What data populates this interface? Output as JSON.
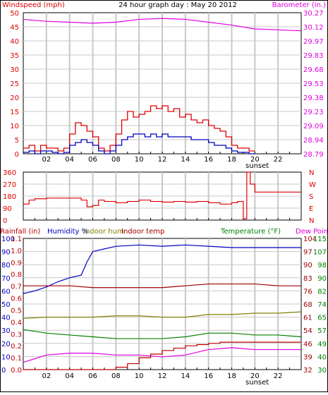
{
  "title": "24 hour graph day : May 20 2012",
  "colors": {
    "wind": "#e00000",
    "gust": "#e00000",
    "avg": "#0000c0",
    "baro": "#e000e0",
    "dir": "#e00000",
    "humidity": "#0000c0",
    "indoor_hum": "#808000",
    "indoor_temp": "#a00000",
    "temperature": "#008000",
    "dewpoint": "#e000e0",
    "rain": "#c00000",
    "grid": "#c8c8c8",
    "axis": "#000000"
  },
  "chart_data": [
    {
      "type": "line",
      "panel": "wind-baro",
      "left_axis_label": "Windspeed (mph)",
      "right_axis_label": "Barometer (in.)",
      "x_ticks": [
        "02",
        "04",
        "06",
        "08",
        "10",
        "12",
        "14",
        "16",
        "18",
        "20",
        "22"
      ],
      "x_extra_label": "sunset",
      "y_left_ticks": [
        "0",
        "5",
        "10",
        "15",
        "20",
        "25",
        "30",
        "35",
        "40",
        "45",
        "50"
      ],
      "ylim_left": [
        0,
        50
      ],
      "y_right_ticks": [
        "28.79",
        "28.94",
        "29.09",
        "29.23",
        "29.38",
        "29.53",
        "29.68",
        "29.83",
        "29.97",
        "30.12",
        "30.27"
      ],
      "ylim_right": [
        28.79,
        30.27
      ],
      "series": [
        {
          "key": "gust",
          "axis": "left",
          "x": [
            0,
            0.5,
            1,
            1.5,
            2,
            2.5,
            3,
            3.5,
            4,
            4.5,
            5,
            5.5,
            6,
            6.5,
            7,
            7.5,
            8,
            8.5,
            9,
            9.5,
            10,
            10.5,
            11,
            11.5,
            12,
            12.5,
            13,
            13.5,
            14,
            14.5,
            15,
            15.5,
            16,
            16.5,
            17,
            17.5,
            18,
            18.5,
            19,
            19.5,
            20
          ],
          "values": [
            2,
            3,
            1,
            3,
            2,
            2,
            1,
            2,
            7,
            11,
            10,
            8,
            6,
            2,
            1,
            3,
            7,
            12,
            15,
            13,
            14,
            15,
            17,
            16,
            17,
            15,
            16,
            13,
            14,
            12,
            11,
            12,
            10,
            9,
            8,
            6,
            3,
            2,
            2,
            1,
            1
          ]
        },
        {
          "key": "avg",
          "axis": "left",
          "x": [
            0,
            0.5,
            1,
            1.5,
            2,
            2.5,
            3,
            3.5,
            4,
            4.5,
            5,
            5.5,
            6,
            6.5,
            7,
            7.5,
            8,
            8.5,
            9,
            9.5,
            10,
            10.5,
            11,
            11.5,
            12,
            12.5,
            13,
            13.5,
            14,
            14.5,
            15,
            15.5,
            16,
            16.5,
            17,
            17.5,
            18,
            18.5,
            19,
            19.5,
            20
          ],
          "values": [
            0.5,
            1,
            0,
            1,
            1,
            0.5,
            0,
            0.5,
            3,
            4,
            5,
            4,
            3,
            1,
            0,
            1,
            3,
            5,
            6,
            7,
            7,
            6,
            7,
            6,
            7,
            6,
            6,
            6,
            6,
            5,
            5,
            5,
            4,
            3,
            3,
            2,
            1,
            0.5,
            0.5,
            0,
            0
          ]
        },
        {
          "key": "baro",
          "axis": "right",
          "x": [
            0,
            2,
            4,
            6,
            8,
            10,
            12,
            14,
            16,
            18,
            20,
            22,
            24
          ],
          "values": [
            30.2,
            30.18,
            30.17,
            30.16,
            30.17,
            30.2,
            30.21,
            30.2,
            30.17,
            30.14,
            30.1,
            30.09,
            30.08
          ]
        }
      ]
    },
    {
      "type": "line",
      "panel": "wind-direction",
      "x_ticks": [
        "02",
        "04",
        "06",
        "08",
        "10",
        "12",
        "14",
        "16",
        "18",
        "20",
        "22"
      ],
      "y_left_ticks": [
        "0",
        "90",
        "180",
        "270",
        "360"
      ],
      "ylim_left": [
        0,
        360
      ],
      "y_right_ticks": [
        "N",
        "E",
        "S",
        "W",
        "N"
      ],
      "series": [
        {
          "key": "dir",
          "x": [
            0,
            0.5,
            1,
            2,
            3,
            4,
            5,
            5.5,
            6,
            6.5,
            7,
            8,
            9,
            10,
            11,
            12,
            13,
            14,
            15,
            16,
            17,
            18,
            18.5,
            19,
            19.3,
            19.6,
            20,
            21,
            22,
            23,
            24
          ],
          "values": [
            120,
            150,
            160,
            165,
            165,
            165,
            150,
            100,
            110,
            150,
            140,
            130,
            140,
            150,
            140,
            135,
            140,
            135,
            140,
            130,
            120,
            130,
            140,
            10,
            360,
            270,
            210,
            210,
            210,
            210,
            210
          ]
        }
      ]
    },
    {
      "type": "line",
      "panel": "temp-hum-rain",
      "left_axis_labels": [
        "Rainfall (in)",
        "Humidity %",
        "Indoor hum",
        "Indoor temp"
      ],
      "right_axis_labels": [
        "Temperature (°F)",
        "Dew Point"
      ],
      "x_ticks": [
        "02",
        "04",
        "06",
        "08",
        "10",
        "12",
        "14",
        "16",
        "18",
        "20",
        "22"
      ],
      "x_extra_label": "sunset",
      "y_hum_ticks": [
        "0",
        "10",
        "20",
        "30",
        "40",
        "50",
        "60",
        "70",
        "80",
        "90",
        "100"
      ],
      "ylim_hum": [
        0,
        100
      ],
      "y_rain_ticks": [
        "0.0",
        "0.1",
        "0.2",
        "0.3",
        "0.4",
        "0.5",
        "0.6",
        "0.7",
        "0.8",
        "0.9",
        "1.0",
        "1.1"
      ],
      "ylim_rain": [
        0,
        1.1
      ],
      "y_temp_ticks_a": [
        "32",
        "39",
        "46",
        "54",
        "61",
        "68",
        "76",
        "83",
        "90",
        "97",
        "104"
      ],
      "y_temp_ticks_b": [
        "30",
        "40",
        "49",
        "57",
        "65",
        "74",
        "82",
        "90",
        "98",
        "107",
        "115"
      ],
      "ylim_temp": [
        32,
        104
      ],
      "series": [
        {
          "key": "humidity",
          "axis": "hum",
          "x": [
            0,
            1,
            2,
            3,
            4,
            5,
            5.5,
            6,
            7,
            8,
            10,
            12,
            14,
            16,
            18,
            20,
            22,
            24
          ],
          "values": [
            58,
            60,
            63,
            67,
            70,
            72,
            82,
            90,
            92,
            94,
            95,
            94,
            95,
            94,
            93,
            93,
            93,
            93
          ]
        },
        {
          "key": "indoor_temp",
          "axis": "temp",
          "x": [
            0,
            2,
            4,
            6,
            8,
            10,
            12,
            14,
            16,
            18,
            20,
            22,
            24
          ],
          "values": [
            78,
            78,
            78,
            77,
            77,
            77,
            77,
            78,
            79,
            79,
            79,
            78,
            78
          ]
        },
        {
          "key": "indoor_hum",
          "axis": "hum",
          "x": [
            0,
            2,
            4,
            6,
            8,
            10,
            12,
            14,
            16,
            18,
            20,
            22,
            24
          ],
          "values": [
            39,
            40,
            40,
            40,
            41,
            41,
            40,
            40,
            42,
            42,
            43,
            43,
            44
          ]
        },
        {
          "key": "temperature",
          "axis": "temp",
          "x": [
            0,
            2,
            4,
            6,
            8,
            10,
            12,
            14,
            16,
            18,
            20,
            22,
            24
          ],
          "values": [
            54,
            52,
            51,
            50,
            49,
            49,
            49,
            50,
            52,
            52,
            51,
            51,
            50
          ]
        },
        {
          "key": "dewpoint",
          "axis": "temp",
          "x": [
            0,
            1,
            2,
            4,
            6,
            8,
            10,
            12,
            14,
            16,
            18,
            20,
            22,
            24
          ],
          "values": [
            36,
            38,
            40,
            41,
            41,
            40,
            40,
            39,
            40,
            43,
            44,
            43,
            43,
            43
          ]
        },
        {
          "key": "rain",
          "axis": "rain",
          "x": [
            0,
            6,
            8,
            9,
            10,
            11,
            12,
            13,
            14,
            15,
            16,
            17,
            18,
            24
          ],
          "values": [
            0,
            0,
            0.02,
            0.05,
            0.1,
            0.13,
            0.16,
            0.18,
            0.2,
            0.21,
            0.22,
            0.23,
            0.23,
            0.23
          ]
        }
      ]
    }
  ]
}
